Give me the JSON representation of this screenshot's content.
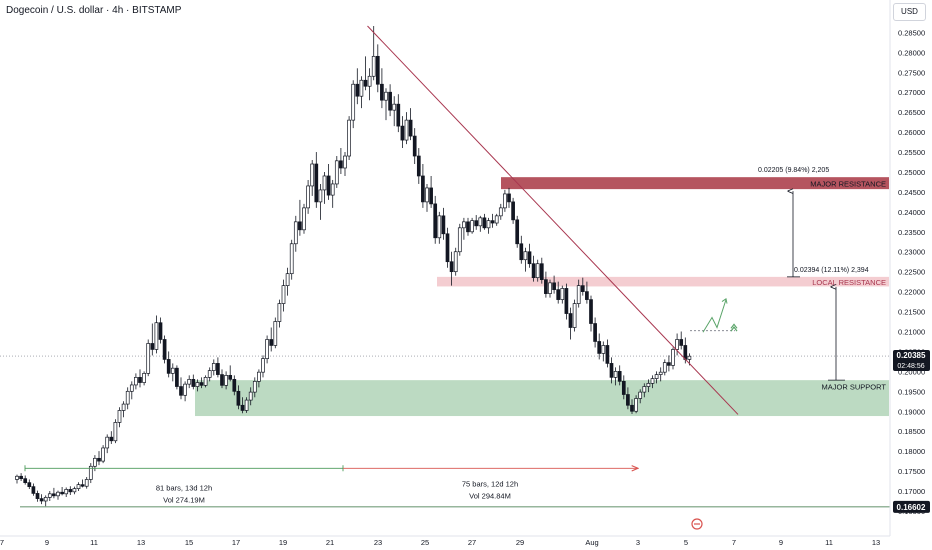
{
  "header": {
    "title": "Dogecoin / U.S. dollar · 4h · BITSTAMP",
    "currency_button": "USD"
  },
  "colors": {
    "up": "#131722",
    "down": "#131722",
    "trendline": "#a8364f",
    "resistance_major": "#b5545f",
    "resistance_local": "#f2c9ce",
    "support": "#b9d9bf",
    "measure_green": "#4c9a5a",
    "measure_red": "#d9534f",
    "arrow_green": "#5aa469"
  },
  "chart_data": {
    "type": "candlestick",
    "symbol": "Dogecoin / U.S. dollar",
    "interval": "4h",
    "exchange": "BITSTAMP",
    "y_axis": {
      "ticks": [
        "0.28500",
        "0.28000",
        "0.27500",
        "0.27000",
        "0.26500",
        "0.26000",
        "0.25500",
        "0.25000",
        "0.24500",
        "0.24000",
        "0.23500",
        "0.23000",
        "0.22500",
        "0.22000",
        "0.21500",
        "0.21000",
        "0.20500",
        "0.20000",
        "0.19500",
        "0.19000",
        "0.18500",
        "0.18000",
        "0.17500",
        "0.17000",
        "0.16500"
      ],
      "range": [
        0.1595,
        0.2905
      ]
    },
    "x_axis": {
      "ticks": [
        "7",
        "9",
        "11",
        "13",
        "15",
        "17",
        "19",
        "21",
        "23",
        "25",
        "27",
        "29",
        "Aug",
        "3",
        "5",
        "7",
        "9",
        "11",
        "13"
      ]
    },
    "price_labels": [
      {
        "value": 0.20385,
        "text": "0.20385",
        "sub": "02:48:56",
        "style": "current"
      },
      {
        "value": 0.16602,
        "text": "0.16602",
        "style": "low"
      }
    ],
    "zones": [
      {
        "name": "MAJOR RESISTANCE",
        "top": 0.2487,
        "bottom": 0.2457,
        "color": "resistance_major"
      },
      {
        "name": "LOCAL RESISTANCE",
        "top": 0.2237,
        "bottom": 0.2213,
        "color": "resistance_local"
      },
      {
        "name": "MAJOR SUPPORT",
        "top": 0.1978,
        "bottom": 0.1888,
        "color": "support"
      }
    ],
    "measurements": [
      {
        "text": "0.02205 (9.84%) 2,205",
        "from": 0.2237,
        "to": 0.2457
      },
      {
        "text": "0.02394 (12.11%) 2,394",
        "from": 0.1978,
        "to": 0.2217
      }
    ],
    "bar_ranges": [
      {
        "text": "81 bars, 13d 12h",
        "vol": "Vol 274.19M",
        "color": "measure_green",
        "price": 0.1757
      },
      {
        "text": "75 bars, 12d 12h",
        "vol": "Vol 294.84M",
        "color": "measure_red",
        "price": 0.1757
      }
    ],
    "trendline": {
      "from_price": 0.2866,
      "to_price": 0.1892
    },
    "candles": [
      [
        0.1729,
        0.1741,
        0.1719,
        0.1737
      ],
      [
        0.1737,
        0.1745,
        0.1725,
        0.1731
      ],
      [
        0.1731,
        0.1739,
        0.1716,
        0.1721
      ],
      [
        0.1721,
        0.1729,
        0.1705,
        0.1711
      ],
      [
        0.1711,
        0.1719,
        0.1688,
        0.1694
      ],
      [
        0.1694,
        0.1701,
        0.1673,
        0.1681
      ],
      [
        0.1681,
        0.1692,
        0.1667,
        0.1675
      ],
      [
        0.1675,
        0.1689,
        0.1662,
        0.1684
      ],
      [
        0.1684,
        0.17,
        0.1675,
        0.1693
      ],
      [
        0.1693,
        0.1708,
        0.1682,
        0.1688
      ],
      [
        0.1688,
        0.1701,
        0.1678,
        0.1697
      ],
      [
        0.1697,
        0.171,
        0.1689,
        0.1693
      ],
      [
        0.1693,
        0.1709,
        0.1685,
        0.1704
      ],
      [
        0.1704,
        0.1712,
        0.169,
        0.1698
      ],
      [
        0.1698,
        0.1711,
        0.1692,
        0.1706
      ],
      [
        0.1706,
        0.1722,
        0.17,
        0.1716
      ],
      [
        0.1716,
        0.1729,
        0.1709,
        0.1712
      ],
      [
        0.1712,
        0.1735,
        0.1706,
        0.1729
      ],
      [
        0.1729,
        0.177,
        0.172,
        0.1762
      ],
      [
        0.1762,
        0.179,
        0.175,
        0.1782
      ],
      [
        0.1782,
        0.18,
        0.1765,
        0.1775
      ],
      [
        0.1775,
        0.1815,
        0.177,
        0.1808
      ],
      [
        0.1808,
        0.1842,
        0.1795,
        0.1835
      ],
      [
        0.1835,
        0.185,
        0.1818,
        0.1826
      ],
      [
        0.1826,
        0.188,
        0.182,
        0.1872
      ],
      [
        0.1872,
        0.191,
        0.186,
        0.1902
      ],
      [
        0.1902,
        0.1925,
        0.1885,
        0.1918
      ],
      [
        0.1918,
        0.196,
        0.1905,
        0.195
      ],
      [
        0.195,
        0.1975,
        0.193,
        0.1966
      ],
      [
        0.1966,
        0.1995,
        0.1955,
        0.1985
      ],
      [
        0.1985,
        0.2005,
        0.196,
        0.1972
      ],
      [
        0.1972,
        0.2,
        0.1965,
        0.1995
      ],
      [
        0.1995,
        0.208,
        0.1988,
        0.207
      ],
      [
        0.207,
        0.212,
        0.204,
        0.2055
      ],
      [
        0.2055,
        0.214,
        0.2045,
        0.2122
      ],
      [
        0.2122,
        0.2135,
        0.207,
        0.208
      ],
      [
        0.208,
        0.209,
        0.202,
        0.203
      ],
      [
        0.203,
        0.205,
        0.1985,
        0.1995
      ],
      [
        0.1995,
        0.202,
        0.1975,
        0.2008
      ],
      [
        0.2008,
        0.2015,
        0.1955,
        0.1962
      ],
      [
        0.1962,
        0.1985,
        0.193,
        0.194
      ],
      [
        0.194,
        0.1975,
        0.1925,
        0.1968
      ],
      [
        0.1968,
        0.199,
        0.1958,
        0.198
      ],
      [
        0.198,
        0.1992,
        0.1955,
        0.1962
      ],
      [
        0.1962,
        0.198,
        0.195,
        0.1972
      ],
      [
        0.1972,
        0.1985,
        0.1958,
        0.1965
      ],
      [
        0.1965,
        0.199,
        0.196,
        0.1985
      ],
      [
        0.1985,
        0.201,
        0.1975,
        0.2002
      ],
      [
        0.2002,
        0.203,
        0.199,
        0.202
      ],
      [
        0.202,
        0.2035,
        0.1985,
        0.1992
      ],
      [
        0.1992,
        0.2005,
        0.1958,
        0.1965
      ],
      [
        0.1965,
        0.2,
        0.1955,
        0.199
      ],
      [
        0.199,
        0.2015,
        0.1975,
        0.198
      ],
      [
        0.198,
        0.199,
        0.194,
        0.195
      ],
      [
        0.195,
        0.1965,
        0.1905,
        0.1915
      ],
      [
        0.1915,
        0.1935,
        0.1895,
        0.1902
      ],
      [
        0.1902,
        0.1935,
        0.1896,
        0.1928
      ],
      [
        0.1928,
        0.196,
        0.1915,
        0.1948
      ],
      [
        0.1948,
        0.1985,
        0.1935,
        0.1975
      ],
      [
        0.1975,
        0.2005,
        0.196,
        0.1998
      ],
      [
        0.1998,
        0.204,
        0.1985,
        0.2032
      ],
      [
        0.2032,
        0.209,
        0.202,
        0.208
      ],
      [
        0.208,
        0.211,
        0.205,
        0.2065
      ],
      [
        0.2065,
        0.2135,
        0.2058,
        0.2125
      ],
      [
        0.2125,
        0.218,
        0.211,
        0.217
      ],
      [
        0.217,
        0.223,
        0.215,
        0.2215
      ],
      [
        0.2215,
        0.226,
        0.219,
        0.2245
      ],
      [
        0.2245,
        0.233,
        0.223,
        0.232
      ],
      [
        0.232,
        0.239,
        0.23,
        0.2375
      ],
      [
        0.2375,
        0.243,
        0.234,
        0.2355
      ],
      [
        0.2355,
        0.242,
        0.2345,
        0.241
      ],
      [
        0.241,
        0.248,
        0.2395,
        0.2465
      ],
      [
        0.2465,
        0.253,
        0.244,
        0.252
      ],
      [
        0.252,
        0.255,
        0.241,
        0.2425
      ],
      [
        0.2425,
        0.247,
        0.238,
        0.2455
      ],
      [
        0.2455,
        0.25,
        0.242,
        0.249
      ],
      [
        0.249,
        0.252,
        0.243,
        0.2442
      ],
      [
        0.2442,
        0.248,
        0.241,
        0.247
      ],
      [
        0.247,
        0.254,
        0.246,
        0.2528
      ],
      [
        0.2528,
        0.256,
        0.2495,
        0.251
      ],
      [
        0.251,
        0.255,
        0.249,
        0.254
      ],
      [
        0.254,
        0.264,
        0.253,
        0.263
      ],
      [
        0.263,
        0.273,
        0.261,
        0.272
      ],
      [
        0.272,
        0.276,
        0.267,
        0.269
      ],
      [
        0.269,
        0.274,
        0.266,
        0.273
      ],
      [
        0.273,
        0.279,
        0.2705,
        0.2715
      ],
      [
        0.2715,
        0.276,
        0.268,
        0.274
      ],
      [
        0.274,
        0.2866,
        0.273,
        0.279
      ],
      [
        0.279,
        0.282,
        0.27,
        0.272
      ],
      [
        0.272,
        0.276,
        0.266,
        0.268
      ],
      [
        0.268,
        0.271,
        0.263,
        0.27
      ],
      [
        0.27,
        0.272,
        0.264,
        0.2655
      ],
      [
        0.2655,
        0.269,
        0.2615,
        0.267
      ],
      [
        0.267,
        0.2695,
        0.26,
        0.2615
      ],
      [
        0.2615,
        0.264,
        0.256,
        0.258
      ],
      [
        0.258,
        0.265,
        0.257,
        0.263
      ],
      [
        0.263,
        0.266,
        0.258,
        0.259
      ],
      [
        0.259,
        0.261,
        0.252,
        0.254
      ],
      [
        0.254,
        0.256,
        0.247,
        0.249
      ],
      [
        0.249,
        0.252,
        0.241,
        0.2425
      ],
      [
        0.2425,
        0.247,
        0.24,
        0.246
      ],
      [
        0.246,
        0.249,
        0.241,
        0.242
      ],
      [
        0.242,
        0.244,
        0.232,
        0.2335
      ],
      [
        0.2335,
        0.24,
        0.232,
        0.239
      ],
      [
        0.239,
        0.241,
        0.233,
        0.2345
      ],
      [
        0.2345,
        0.236,
        0.226,
        0.2275
      ],
      [
        0.2275,
        0.23,
        0.2215,
        0.225
      ],
      [
        0.225,
        0.231,
        0.224,
        0.23
      ],
      [
        0.23,
        0.237,
        0.229,
        0.236
      ],
      [
        0.236,
        0.2385,
        0.233,
        0.2375
      ],
      [
        0.2375,
        0.2385,
        0.234,
        0.235
      ],
      [
        0.235,
        0.2385,
        0.2345,
        0.2378
      ],
      [
        0.2378,
        0.2392,
        0.2355,
        0.2365
      ],
      [
        0.2365,
        0.239,
        0.235,
        0.2385
      ],
      [
        0.2385,
        0.2395,
        0.2355,
        0.236
      ],
      [
        0.236,
        0.2385,
        0.2345,
        0.2378
      ],
      [
        0.2378,
        0.2395,
        0.236,
        0.2372
      ],
      [
        0.2372,
        0.2395,
        0.2365,
        0.239
      ],
      [
        0.239,
        0.242,
        0.238,
        0.241
      ],
      [
        0.241,
        0.2455,
        0.24,
        0.2445
      ],
      [
        0.2445,
        0.246,
        0.241,
        0.2425
      ],
      [
        0.2425,
        0.2435,
        0.237,
        0.238
      ],
      [
        0.238,
        0.239,
        0.231,
        0.232
      ],
      [
        0.232,
        0.234,
        0.227,
        0.228
      ],
      [
        0.228,
        0.231,
        0.225,
        0.23
      ],
      [
        0.23,
        0.232,
        0.226,
        0.227
      ],
      [
        0.227,
        0.229,
        0.2225,
        0.2235
      ],
      [
        0.2235,
        0.228,
        0.2225,
        0.227
      ],
      [
        0.227,
        0.2285,
        0.222,
        0.223
      ],
      [
        0.223,
        0.225,
        0.2185,
        0.2195
      ],
      [
        0.2195,
        0.223,
        0.2185,
        0.2222
      ],
      [
        0.2222,
        0.224,
        0.2195,
        0.2205
      ],
      [
        0.2205,
        0.2225,
        0.217,
        0.218
      ],
      [
        0.218,
        0.2215,
        0.217,
        0.2208
      ],
      [
        0.2208,
        0.222,
        0.213,
        0.2145
      ],
      [
        0.2145,
        0.216,
        0.208,
        0.211
      ],
      [
        0.211,
        0.218,
        0.21,
        0.217
      ],
      [
        0.217,
        0.223,
        0.216,
        0.2215
      ],
      [
        0.2215,
        0.2235,
        0.219,
        0.22
      ],
      [
        0.22,
        0.2225,
        0.217,
        0.218
      ],
      [
        0.218,
        0.219,
        0.21,
        0.212
      ],
      [
        0.212,
        0.2135,
        0.206,
        0.2075
      ],
      [
        0.2075,
        0.2095,
        0.203,
        0.2045
      ],
      [
        0.2045,
        0.2075,
        0.2025,
        0.2065
      ],
      [
        0.2065,
        0.208,
        0.201,
        0.202
      ],
      [
        0.202,
        0.2035,
        0.197,
        0.1985
      ],
      [
        0.1985,
        0.201,
        0.1965,
        0.2
      ],
      [
        0.2,
        0.2015,
        0.1965,
        0.1975
      ],
      [
        0.1975,
        0.199,
        0.193,
        0.1942
      ],
      [
        0.1942,
        0.196,
        0.1905,
        0.1915
      ],
      [
        0.1915,
        0.193,
        0.1893,
        0.19
      ],
      [
        0.19,
        0.194,
        0.1895,
        0.1932
      ],
      [
        0.1932,
        0.1955,
        0.192,
        0.1948
      ],
      [
        0.1948,
        0.197,
        0.1935,
        0.1962
      ],
      [
        0.1962,
        0.198,
        0.1948,
        0.197
      ],
      [
        0.197,
        0.199,
        0.1958,
        0.1982
      ],
      [
        0.1982,
        0.2,
        0.197,
        0.1992
      ],
      [
        0.1992,
        0.201,
        0.1975,
        0.1998
      ],
      [
        0.1998,
        0.203,
        0.199,
        0.2022
      ],
      [
        0.2022,
        0.204,
        0.2,
        0.2015
      ],
      [
        0.2015,
        0.206,
        0.2005,
        0.2055
      ],
      [
        0.2055,
        0.2095,
        0.204,
        0.208
      ],
      [
        0.208,
        0.21,
        0.2055,
        0.2065
      ],
      [
        0.2065,
        0.2085,
        0.202,
        0.203
      ],
      [
        0.203,
        0.2045,
        0.2015,
        0.2038
      ]
    ]
  },
  "annotations": {
    "major_resistance": "MAJOR RESISTANCE",
    "local_resistance": "LOCAL RESISTANCE",
    "major_support": "MAJOR SUPPORT",
    "measure_upper": "0.02205 (9.84%) 2,205",
    "measure_lower": "0.02394 (12.11%) 2,394",
    "range_left_bars": "81 bars, 13d 12h",
    "range_left_vol": "Vol 274.19M",
    "range_right_bars": "75 bars, 12d 12h",
    "range_right_vol": "Vol 294.84M"
  }
}
